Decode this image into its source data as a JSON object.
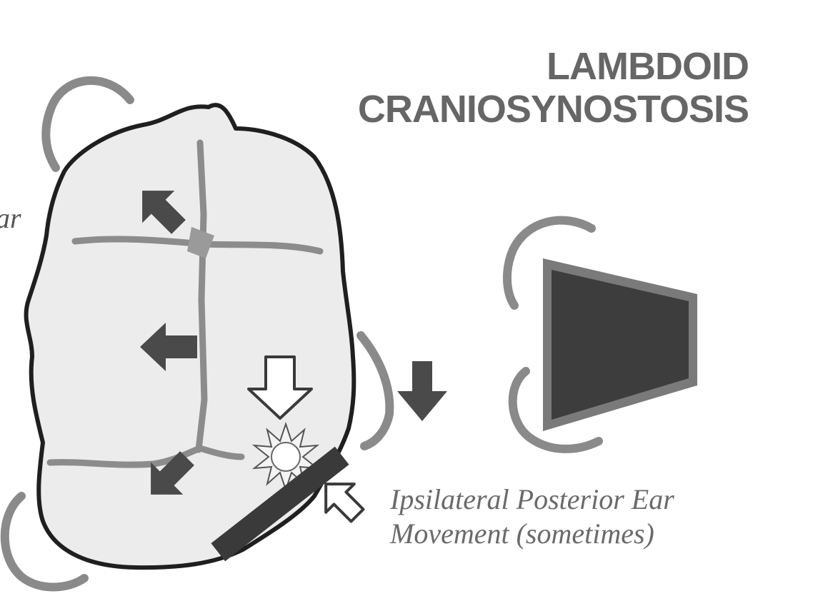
{
  "title": {
    "line1": "LAMBDOID",
    "line2": "CRANIOSYNOSTOSIS"
  },
  "caption": {
    "line1": "Ipsilateral Posterior Ear",
    "line2": "Movement (sometimes)"
  },
  "edge_text": "ar",
  "colors": {
    "skull_fill": "#ececec",
    "outline": "#1f1f1f",
    "suture": "#8c8c8c",
    "arrow": "#4a4a4a",
    "bracket": "#8a8a8a",
    "fused_suture_bar": "#3a3a3a",
    "trapezoid_fill": "#3d3d3d",
    "trapezoid_border": "#7a7a7a",
    "title": "#666666",
    "caption": "#6a6a6a"
  }
}
